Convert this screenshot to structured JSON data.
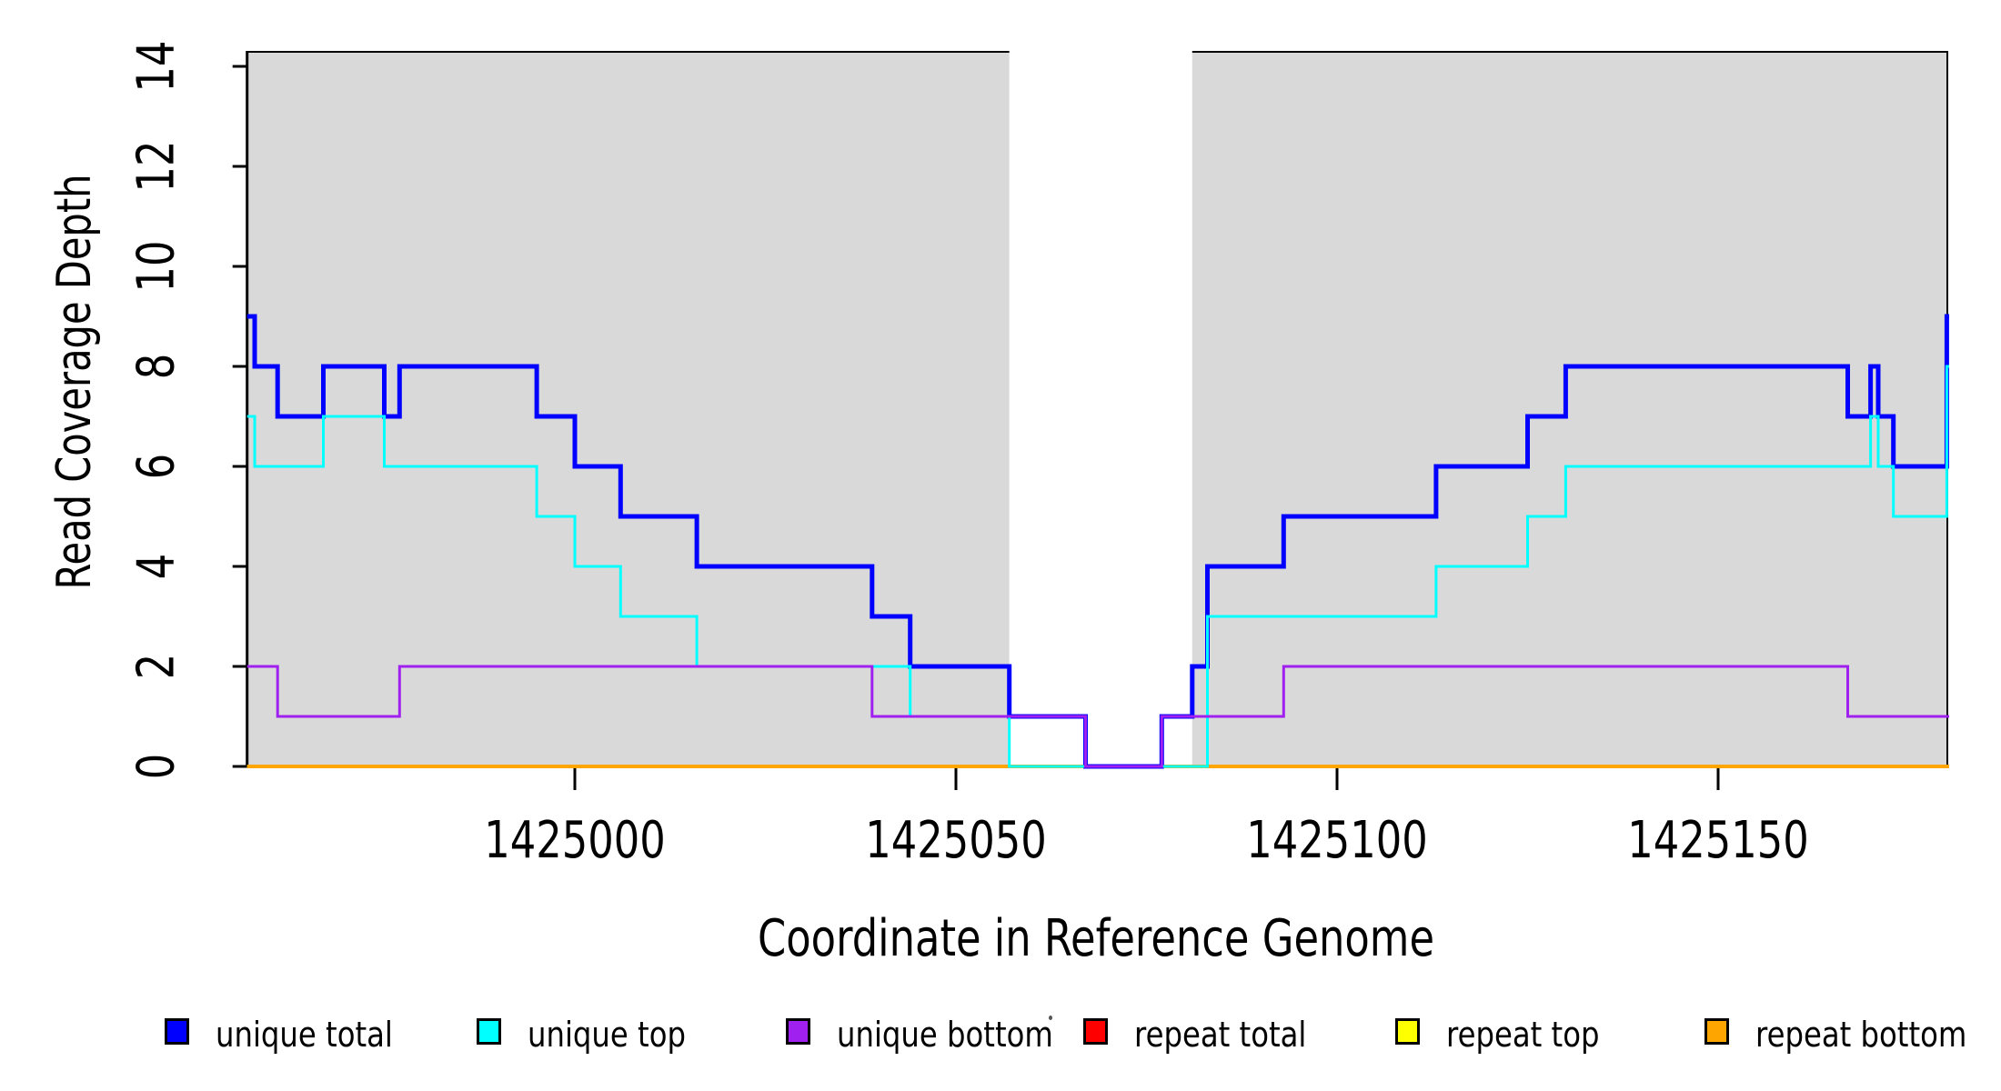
{
  "chart_data": {
    "type": "line",
    "step": true,
    "xlabel": "Coordinate in Reference Genome",
    "ylabel": "Read Coverage Depth",
    "xlim": [
      1424957,
      1425180
    ],
    "ylim": [
      0,
      14
    ],
    "x_ticks": [
      "1425000",
      "1425050",
      "1425100",
      "1425150"
    ],
    "x_tick_values": [
      1425000,
      1425050,
      1425100,
      1425150
    ],
    "y_ticks": [
      "0",
      "2",
      "4",
      "6",
      "8",
      "10",
      "12",
      "14"
    ],
    "y_tick_values": [
      0,
      2,
      4,
      6,
      8,
      10,
      12,
      14
    ],
    "grid": false,
    "legend_position": "bottom",
    "shade_color": "#d9d9d9",
    "shaded_regions": [
      {
        "x0": 1424957,
        "x1": 1425057
      },
      {
        "x0": 1425081,
        "x1": 1425180
      }
    ],
    "gap_region": {
      "x0": 1425057,
      "x1": 1425081
    },
    "series": [
      {
        "name": "unique total",
        "color": "#0000ff",
        "width": 5,
        "points": [
          [
            1424957,
            9
          ],
          [
            1424958,
            8
          ],
          [
            1424961,
            7
          ],
          [
            1424967,
            8
          ],
          [
            1424975,
            7
          ],
          [
            1424977,
            8
          ],
          [
            1424995,
            7
          ],
          [
            1425000,
            6
          ],
          [
            1425006,
            5
          ],
          [
            1425016,
            4
          ],
          [
            1425039,
            3
          ],
          [
            1425044,
            2
          ],
          [
            1425057,
            1
          ],
          [
            1425067,
            0
          ],
          [
            1425077,
            1
          ],
          [
            1425081,
            2
          ],
          [
            1425083,
            4
          ],
          [
            1425093,
            5
          ],
          [
            1425113,
            6
          ],
          [
            1425125,
            7
          ],
          [
            1425130,
            8
          ],
          [
            1425167,
            7
          ],
          [
            1425170,
            8
          ],
          [
            1425171,
            7
          ],
          [
            1425173,
            6
          ],
          [
            1425180,
            9
          ]
        ]
      },
      {
        "name": "unique top",
        "color": "#00ffff",
        "width": 3,
        "points": [
          [
            1424957,
            7
          ],
          [
            1424958,
            6
          ],
          [
            1424967,
            7
          ],
          [
            1424975,
            6
          ],
          [
            1424995,
            5
          ],
          [
            1425000,
            4
          ],
          [
            1425006,
            3
          ],
          [
            1425016,
            2
          ],
          [
            1425044,
            1
          ],
          [
            1425057,
            0
          ],
          [
            1425083,
            3
          ],
          [
            1425113,
            4
          ],
          [
            1425125,
            5
          ],
          [
            1425130,
            6
          ],
          [
            1425170,
            7
          ],
          [
            1425171,
            6
          ],
          [
            1425173,
            5
          ],
          [
            1425180,
            8
          ]
        ]
      },
      {
        "name": "unique bottom",
        "color": "#a020f0",
        "width": 3,
        "points": [
          [
            1424957,
            2
          ],
          [
            1424961,
            1
          ],
          [
            1424977,
            2
          ],
          [
            1425039,
            1
          ],
          [
            1425067,
            0
          ],
          [
            1425077,
            1
          ],
          [
            1425093,
            2
          ],
          [
            1425167,
            1
          ],
          [
            1425180,
            1
          ]
        ]
      },
      {
        "name": "repeat total",
        "color": "#ff0000",
        "width": 3,
        "points": [
          [
            1424957,
            0
          ],
          [
            1425180,
            0
          ]
        ]
      },
      {
        "name": "repeat top",
        "color": "#ffff00",
        "width": 3,
        "points": [
          [
            1424957,
            0
          ],
          [
            1425180,
            0
          ]
        ]
      },
      {
        "name": "repeat bottom",
        "color": "#ffa500",
        "width": 4,
        "points": [
          [
            1424957,
            0
          ],
          [
            1425180,
            0
          ]
        ]
      }
    ],
    "legend": [
      {
        "label": "unique total",
        "color": "#0000ff"
      },
      {
        "label": "unique top",
        "color": "#00ffff"
      },
      {
        "label": "unique bottom",
        "color": "#a020f0"
      },
      {
        "label": "repeat total",
        "color": "#ff0000"
      },
      {
        "label": "repeat top",
        "color": "#ffff00"
      },
      {
        "label": "repeat bottom",
        "color": "#ffa500"
      }
    ]
  }
}
